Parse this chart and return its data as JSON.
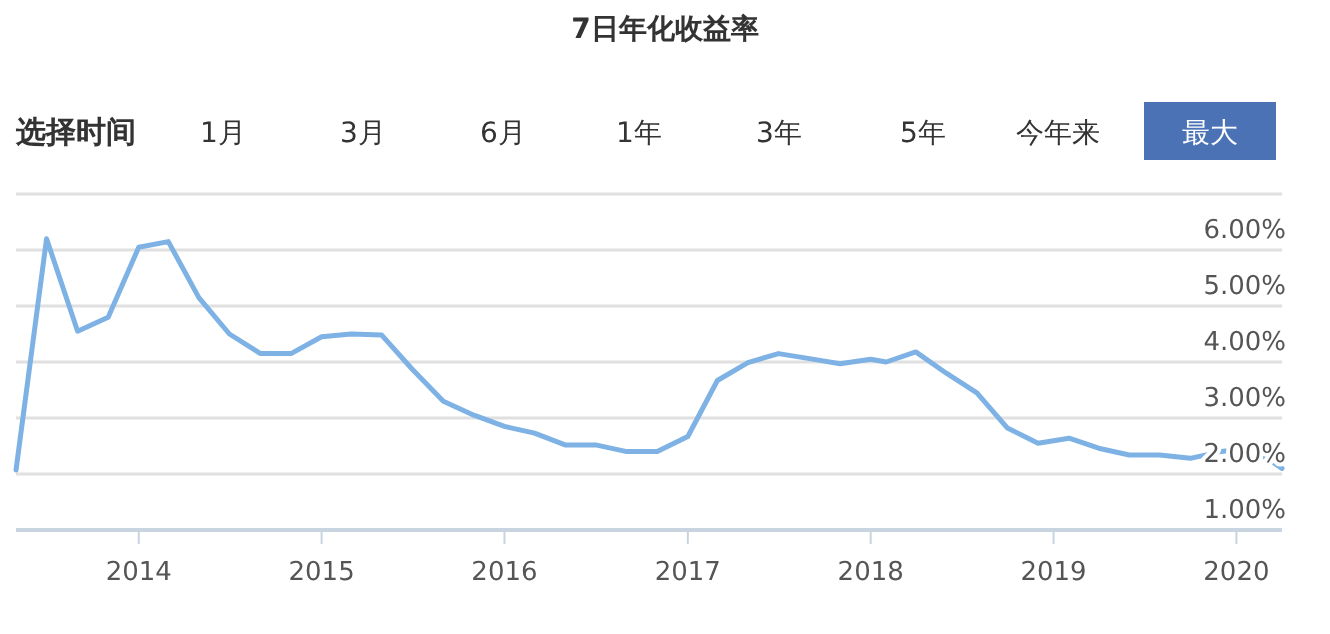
{
  "chart_data": {
    "type": "line",
    "title": "7日年化收益率",
    "annotations": [
      "选择时间",
      "1月",
      "3月",
      "6月",
      "1年",
      "3年",
      "5年",
      "今年来",
      "最大"
    ],
    "x": [
      "2013-05",
      "2013-07",
      "2013-09",
      "2013-11",
      "2014-01",
      "2014-03",
      "2014-05",
      "2014-07",
      "2014-09",
      "2014-11",
      "2015-01",
      "2015-03",
      "2015-05",
      "2015-07",
      "2015-09",
      "2015-11",
      "2016-01",
      "2016-03",
      "2016-05",
      "2016-07",
      "2016-09",
      "2016-11",
      "2017-01",
      "2017-03",
      "2017-05",
      "2017-07",
      "2017-09",
      "2017-11",
      "2018-01",
      "2018-02",
      "2018-04",
      "2018-06",
      "2018-08",
      "2018-10",
      "2018-12",
      "2019-02",
      "2019-04",
      "2019-06",
      "2019-08",
      "2019-10",
      "2019-12",
      "2020-02",
      "2020-04"
    ],
    "series": [
      {
        "color": "#7eb2e4",
        "values": [
          2.07,
          6.2,
          4.55,
          4.8,
          6.05,
          6.15,
          5.15,
          4.5,
          4.15,
          4.15,
          4.45,
          4.5,
          4.48,
          3.87,
          3.3,
          3.05,
          2.85,
          2.73,
          2.52,
          2.52,
          2.4,
          2.4,
          2.67,
          3.67,
          3.99,
          4.15,
          4.06,
          3.97,
          4.05,
          4.0,
          4.18,
          3.8,
          3.45,
          2.82,
          2.55,
          2.64,
          2.46,
          2.34,
          2.34,
          2.28,
          2.4,
          2.46,
          2.1
        ]
      }
    ],
    "xlim": [
      "2013-05",
      "2020-04"
    ],
    "xticks": [
      "2014",
      "2015",
      "2016",
      "2017",
      "2018",
      "2019",
      "2020"
    ],
    "ylim": [
      1,
      7
    ],
    "yticks": [
      {
        "value": 1,
        "label": "1.00%"
      },
      {
        "value": 2,
        "label": "2.00%"
      },
      {
        "value": 3,
        "label": "3.00%"
      },
      {
        "value": 4,
        "label": "4.00%"
      },
      {
        "value": 5,
        "label": "5.00%"
      },
      {
        "value": 6,
        "label": "6.00%"
      },
      {
        "value": 7,
        "label": null
      }
    ],
    "grid": "y",
    "marker": "none",
    "line_style": "solid"
  }
}
